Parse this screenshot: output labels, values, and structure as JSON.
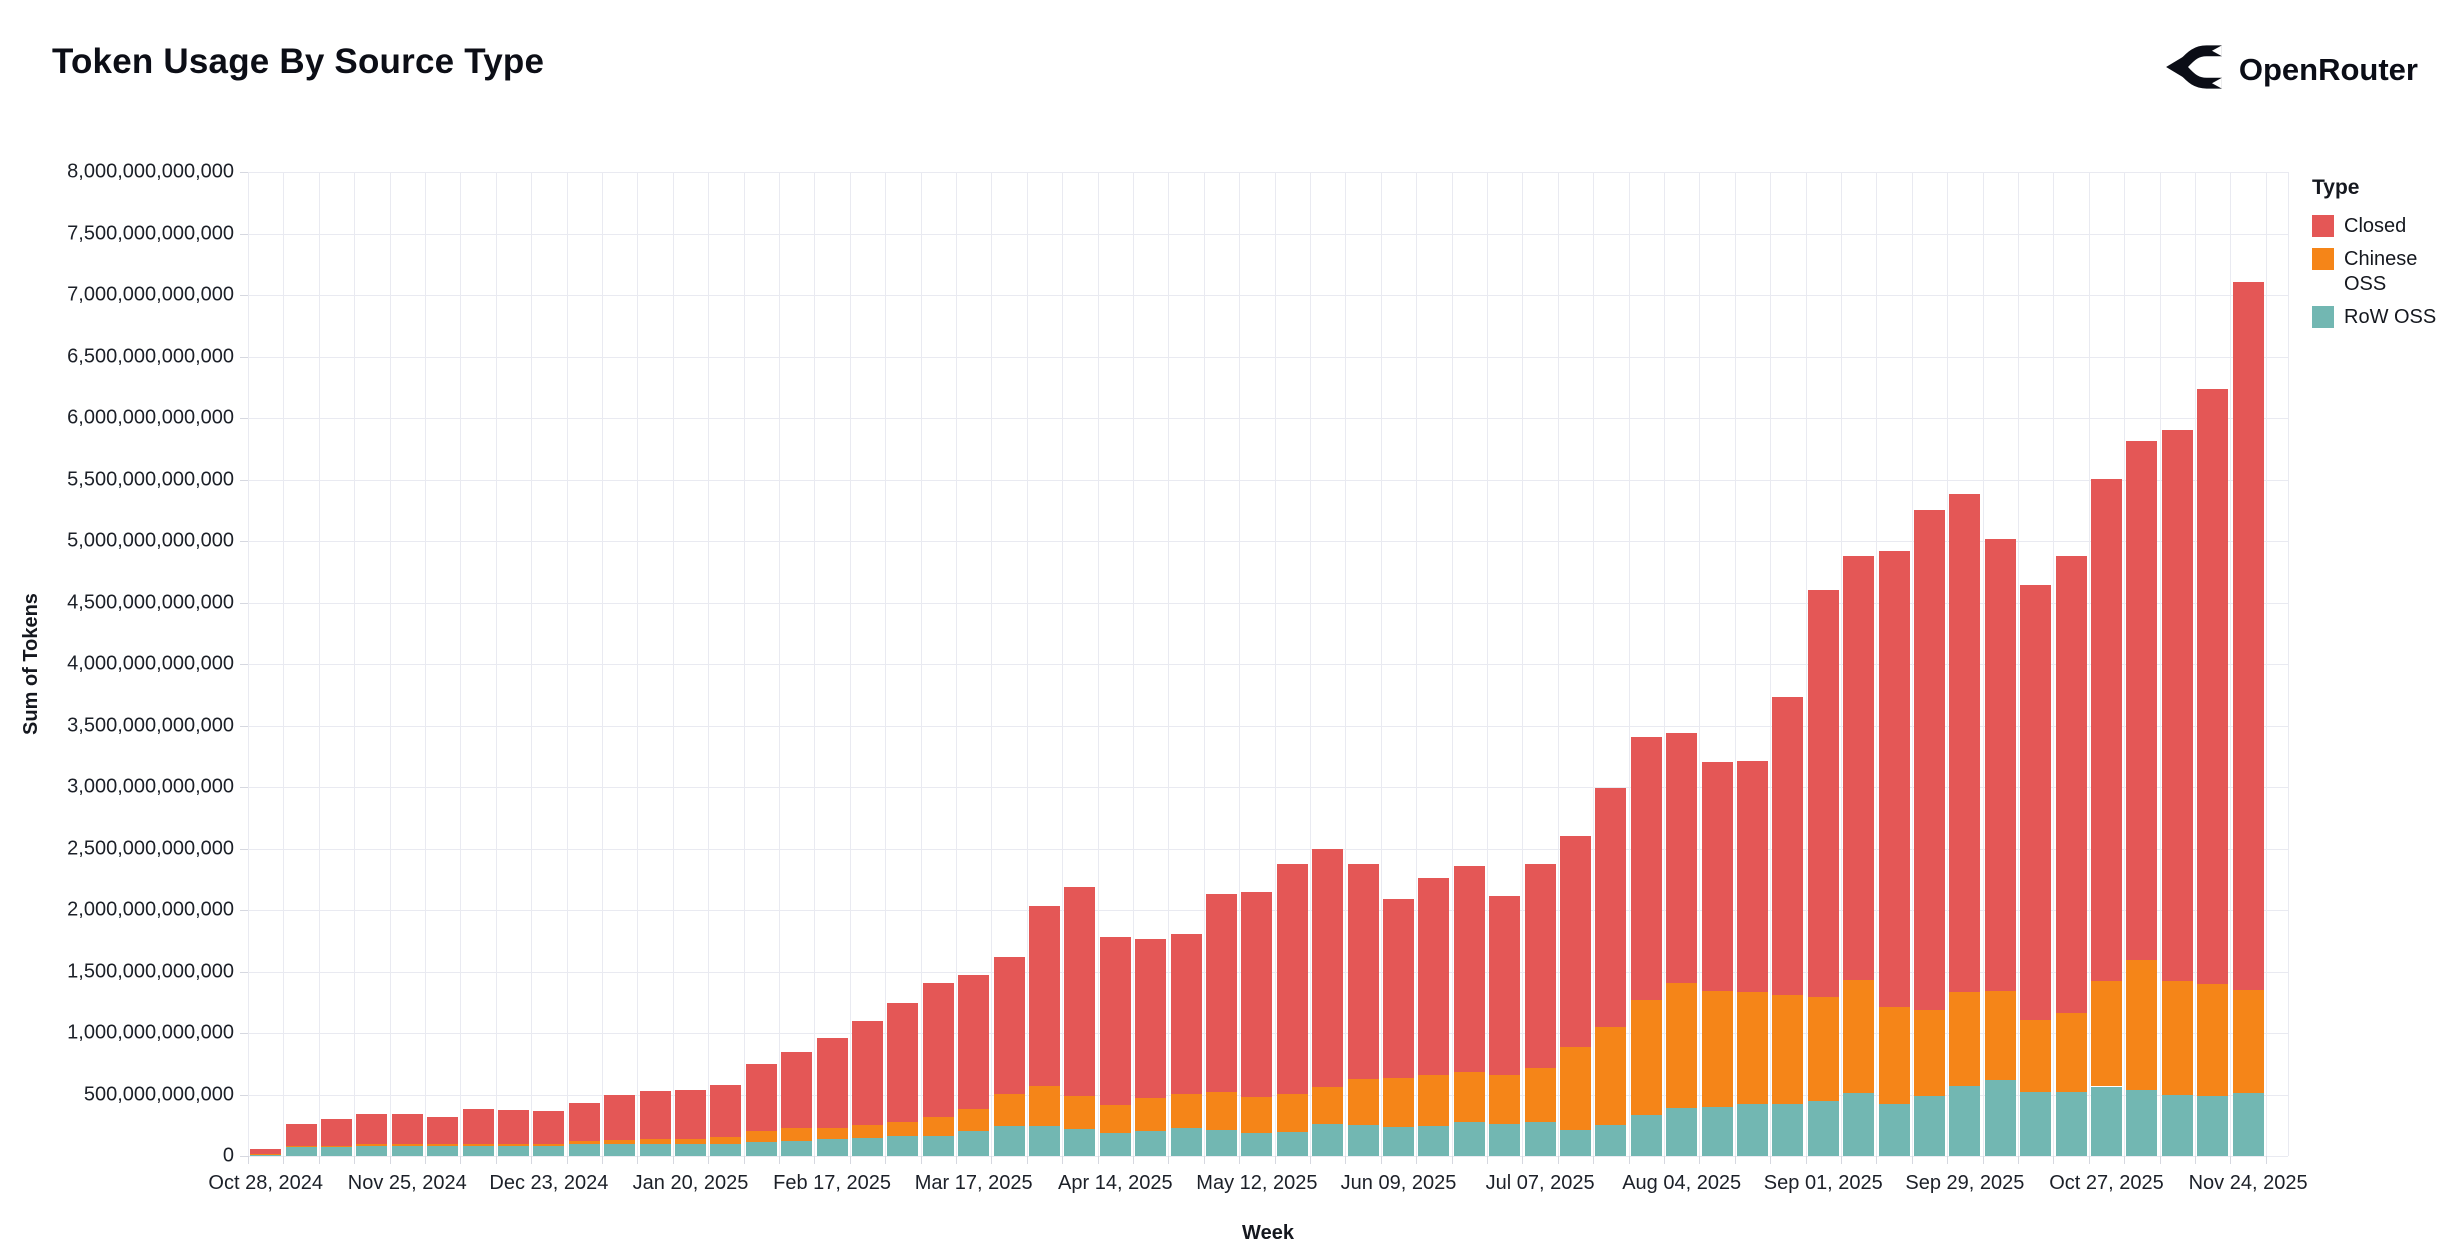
{
  "page": {
    "title": "Token Usage By Source Type",
    "brand": "OpenRouter"
  },
  "legend": {
    "title": "Type",
    "items": [
      {
        "label": "Closed",
        "color": "#e45756"
      },
      {
        "label": "Chinese OSS",
        "color": "#f58518"
      },
      {
        "label": "RoW OSS",
        "color": "#72b7b2"
      }
    ]
  },
  "chart_data": {
    "type": "bar",
    "stacked": true,
    "title": "Token Usage By Source Type",
    "xlabel": "Week",
    "ylabel": "Sum of Tokens",
    "grid": true,
    "legend_position": "right",
    "ylim": [
      0,
      8000000000000
    ],
    "y_tick_step": 500000000000,
    "unit_note": "series values are billions of tokens",
    "values_scale": 1000000000,
    "y_tick_labels": [
      "0",
      "500,000,000,000",
      "1,000,000,000,000",
      "1,500,000,000,000",
      "2,000,000,000,000",
      "2,500,000,000,000",
      "3,000,000,000,000",
      "3,500,000,000,000",
      "4,000,000,000,000",
      "4,500,000,000,000",
      "5,000,000,000,000",
      "5,500,000,000,000",
      "6,000,000,000,000",
      "6,500,000,000,000",
      "7,000,000,000,000",
      "7,500,000,000,000",
      "8,000,000,000,000"
    ],
    "x_tick_every": 4,
    "x_tick_labels": [
      "Oct 28, 2024",
      "Nov 25, 2024",
      "Dec 23, 2024",
      "Jan 20, 2025",
      "Feb 17, 2025",
      "Mar 17, 2025",
      "Apr 14, 2025",
      "May 12, 2025",
      "Jun 09, 2025",
      "Jul 07, 2025",
      "Aug 04, 2025",
      "Sep 01, 2025",
      "Sep 29, 2025",
      "Oct 27, 2025",
      "Nov 24, 2025"
    ],
    "categories": [
      "Oct 28, 2024",
      "Nov 04, 2024",
      "Nov 11, 2024",
      "Nov 18, 2024",
      "Nov 25, 2024",
      "Dec 02, 2024",
      "Dec 09, 2024",
      "Dec 16, 2024",
      "Dec 23, 2024",
      "Dec 30, 2024",
      "Jan 06, 2025",
      "Jan 13, 2025",
      "Jan 20, 2025",
      "Jan 27, 2025",
      "Feb 03, 2025",
      "Feb 10, 2025",
      "Feb 17, 2025",
      "Feb 24, 2025",
      "Mar 03, 2025",
      "Mar 10, 2025",
      "Mar 17, 2025",
      "Mar 24, 2025",
      "Mar 31, 2025",
      "Apr 07, 2025",
      "Apr 14, 2025",
      "Apr 21, 2025",
      "Apr 28, 2025",
      "May 05, 2025",
      "May 12, 2025",
      "May 19, 2025",
      "May 26, 2025",
      "Jun 02, 2025",
      "Jun 09, 2025",
      "Jun 16, 2025",
      "Jun 23, 2025",
      "Jun 30, 2025",
      "Jul 07, 2025",
      "Jul 14, 2025",
      "Jul 21, 2025",
      "Jul 28, 2025",
      "Aug 04, 2025",
      "Aug 11, 2025",
      "Aug 18, 2025",
      "Aug 25, 2025",
      "Sep 01, 2025",
      "Sep 08, 2025",
      "Sep 15, 2025",
      "Sep 22, 2025",
      "Sep 29, 2025",
      "Oct 06, 2025",
      "Oct 13, 2025",
      "Oct 20, 2025",
      "Oct 27, 2025",
      "Nov 03, 2025",
      "Nov 10, 2025",
      "Nov 17, 2025",
      "Nov 24, 2025"
    ],
    "series_order": "bottom_to_top",
    "series": [
      {
        "name": "RoW OSS",
        "color": "#72b7b2",
        "values_billions": [
          15,
          75,
          75,
          85,
          85,
          85,
          85,
          85,
          85,
          100,
          95,
          95,
          95,
          100,
          115,
          125,
          135,
          145,
          160,
          160,
          200,
          240,
          245,
          220,
          185,
          205,
          225,
          210,
          190,
          195,
          260,
          250,
          235,
          240,
          280,
          260,
          275,
          215,
          255,
          335,
          390,
          395,
          420,
          425,
          445,
          510,
          425,
          490,
          570,
          615,
          520,
          520,
          565,
          540,
          495,
          485,
          510
        ]
      },
      {
        "name": "Chinese OSS",
        "color": "#f58518",
        "values_billions": [
          5,
          8,
          8,
          10,
          10,
          10,
          15,
          15,
          15,
          20,
          35,
          40,
          45,
          55,
          85,
          100,
          95,
          105,
          120,
          160,
          185,
          265,
          325,
          265,
          230,
          265,
          280,
          310,
          290,
          310,
          305,
          380,
          400,
          415,
          405,
          400,
          440,
          675,
          790,
          930,
          1015,
          950,
          915,
          885,
          850,
          920,
          785,
          700,
          760,
          730,
          585,
          640,
          855,
          1050,
          930,
          915,
          840
        ]
      },
      {
        "name": "Closed",
        "color": "#e45756",
        "values_billions": [
          35,
          177,
          217,
          250,
          245,
          220,
          280,
          275,
          265,
          310,
          370,
          390,
          400,
          425,
          545,
          620,
          730,
          850,
          960,
          1090,
          1090,
          1115,
          1465,
          1700,
          1365,
          1295,
          1300,
          1610,
          1670,
          1870,
          1935,
          1745,
          1455,
          1605,
          1675,
          1450,
          1660,
          1710,
          1945,
          2145,
          2030,
          1855,
          1875,
          2420,
          3310,
          3450,
          3705,
          4060,
          4055,
          3670,
          3535,
          3715,
          4085,
          4220,
          4480,
          4835,
          5755
        ]
      }
    ]
  }
}
